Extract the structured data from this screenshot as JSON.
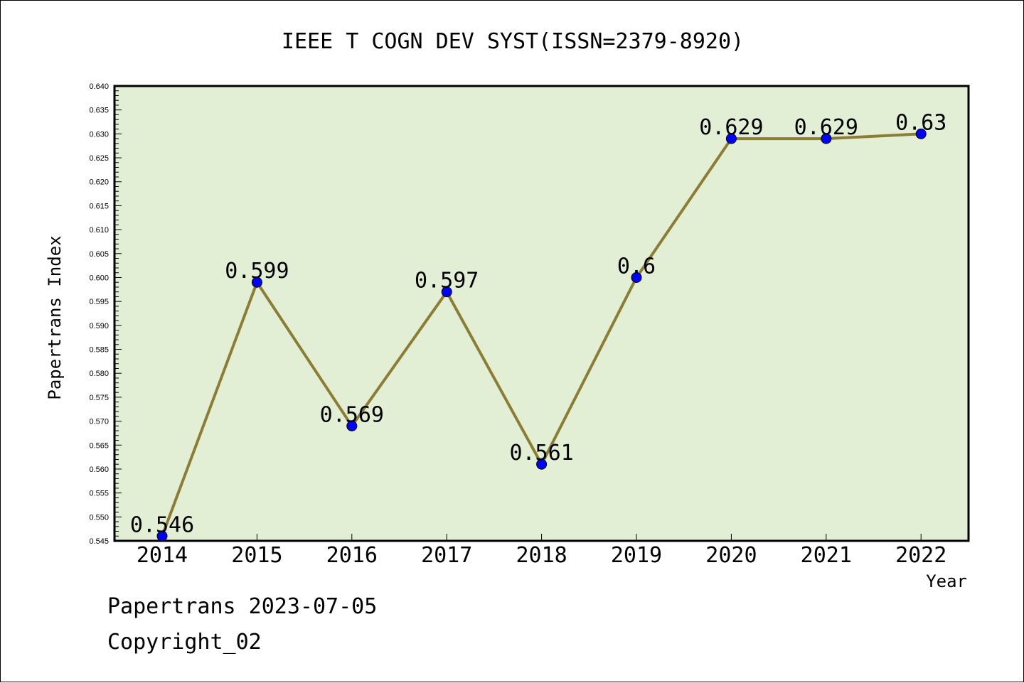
{
  "chart_data": {
    "type": "line",
    "title": "IEEE T COGN DEV SYST(ISSN=2379-8920)",
    "xlabel": "Year",
    "ylabel": "Papertrans Index",
    "categories": [
      "2014",
      "2015",
      "2016",
      "2017",
      "2018",
      "2019",
      "2020",
      "2021",
      "2022"
    ],
    "series": [
      {
        "values": [
          0.546,
          0.599,
          0.569,
          0.597,
          0.561,
          0.6,
          0.629,
          0.629,
          0.63
        ],
        "point_labels": [
          "0.546",
          "0.599",
          "0.569",
          "0.597",
          "0.561",
          "0.6",
          "0.629",
          "0.629",
          "0.63"
        ]
      }
    ],
    "ylim": [
      0.545,
      0.64
    ],
    "y_ticks": [
      "0.545",
      "0.550",
      "0.555",
      "0.560",
      "0.565",
      "0.570",
      "0.575",
      "0.580",
      "0.585",
      "0.590",
      "0.595",
      "0.600",
      "0.605",
      "0.610",
      "0.615",
      "0.620",
      "0.625",
      "0.630",
      "0.635",
      "0.640"
    ],
    "grid": false,
    "legend": "none",
    "colors": {
      "plot_background": "#e2efd5",
      "line": "#8c7d35",
      "marker": "#0000ff",
      "axis": "#000000"
    }
  },
  "footer": {
    "source": "Papertrans 2023-07-05",
    "copyright": "Copyright_02"
  }
}
